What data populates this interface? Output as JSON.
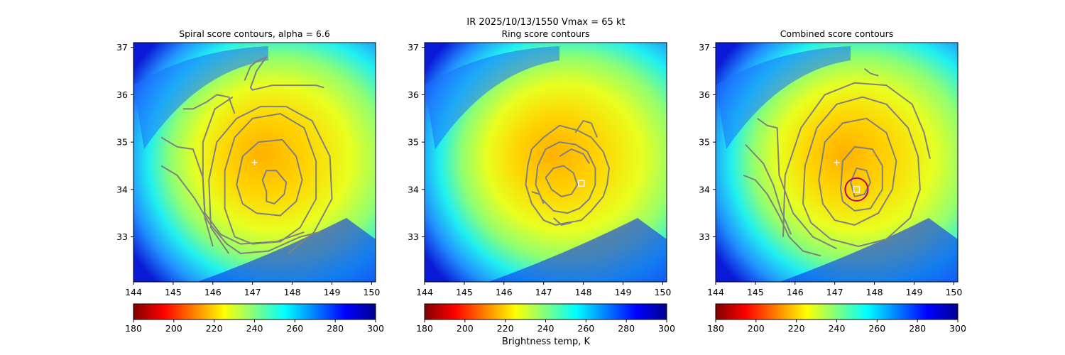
{
  "figure": {
    "suptitle_line1": "IR  2025/10/13/1550    Vmax = 65 kt",
    "colorbar_label": "Brightness temp, K"
  },
  "colormap": {
    "name": "jet",
    "stops": [
      "#800000",
      "#ff0000",
      "#ff8000",
      "#ffff00",
      "#80ff80",
      "#00ffff",
      "#0080ff",
      "#0000ff",
      "#00008f"
    ]
  },
  "colors": {
    "contour": "#808080",
    "first_guess_marker": "#ffffff",
    "best_center_ring": "#b0007a",
    "best_center_box": "#ffffff"
  },
  "chart_data": [
    {
      "type": "heatmap",
      "title": "Spiral score contours, alpha =  6.6",
      "xlim": [
        144,
        150.1
      ],
      "ylim": [
        32.05,
        37.1
      ],
      "xticks": [
        "144",
        "145",
        "146",
        "147",
        "148",
        "149",
        "150"
      ],
      "yticks": [
        "33",
        "34",
        "35",
        "36",
        "37"
      ],
      "colorbar": {
        "min": 180,
        "max": 300,
        "ticks": [
          "180",
          "200",
          "220",
          "240",
          "260",
          "280",
          "300"
        ]
      },
      "markers": [
        {
          "kind": "plus",
          "x": 147.05,
          "y": 34.57
        }
      ],
      "contours": [
        [
          [
            147.35,
            33.95
          ],
          [
            147.25,
            34.2
          ],
          [
            147.35,
            34.4
          ],
          [
            147.6,
            34.4
          ],
          [
            147.85,
            34.15
          ],
          [
            147.8,
            33.9
          ],
          [
            147.55,
            33.7
          ],
          [
            147.35,
            33.75
          ],
          [
            147.35,
            33.95
          ]
        ],
        [
          [
            147.1,
            33.5
          ],
          [
            146.75,
            33.7
          ],
          [
            146.6,
            34.1
          ],
          [
            146.75,
            34.7
          ],
          [
            147.15,
            35.0
          ],
          [
            147.75,
            35.05
          ],
          [
            148.1,
            34.7
          ],
          [
            148.25,
            34.2
          ],
          [
            148.1,
            33.75
          ],
          [
            147.7,
            33.45
          ],
          [
            147.1,
            33.5
          ]
        ],
        [
          [
            146.55,
            33.0
          ],
          [
            146.3,
            33.6
          ],
          [
            146.3,
            34.4
          ],
          [
            146.55,
            35.1
          ],
          [
            147.0,
            35.5
          ],
          [
            147.7,
            35.6
          ],
          [
            148.3,
            35.3
          ],
          [
            148.6,
            34.6
          ],
          [
            148.6,
            33.8
          ],
          [
            148.2,
            33.2
          ],
          [
            147.7,
            32.9
          ],
          [
            147.0,
            32.85
          ],
          [
            146.55,
            33.0
          ]
        ],
        [
          [
            146.4,
            32.65
          ],
          [
            145.95,
            33.2
          ],
          [
            145.9,
            34.2
          ],
          [
            146.1,
            35.0
          ],
          [
            146.6,
            35.5
          ],
          [
            147.2,
            35.75
          ],
          [
            147.85,
            35.75
          ],
          [
            148.5,
            35.45
          ],
          [
            148.95,
            34.7
          ],
          [
            149.0,
            33.8
          ],
          [
            148.55,
            33.1
          ],
          [
            147.9,
            32.65
          ]
        ],
        [
          [
            146.0,
            32.8
          ],
          [
            145.8,
            33.4
          ],
          [
            145.75,
            34.2
          ],
          [
            145.75,
            35.0
          ],
          [
            146.05,
            35.7
          ],
          [
            146.5,
            35.95
          ]
        ],
        [
          [
            144.7,
            34.5
          ],
          [
            145.1,
            34.3
          ],
          [
            145.55,
            33.8
          ],
          [
            145.9,
            33.3
          ],
          [
            146.35,
            32.85
          ],
          [
            146.7,
            32.65
          ],
          [
            147.4,
            32.7
          ],
          [
            148.2,
            33.0
          ],
          [
            148.7,
            33.1
          ]
        ],
        [
          [
            144.7,
            35.1
          ],
          [
            145.1,
            34.9
          ],
          [
            145.5,
            34.85
          ],
          [
            145.75,
            34.25
          ],
          [
            145.8,
            33.5
          ],
          [
            146.2,
            33.05
          ],
          [
            146.7,
            32.85
          ],
          [
            147.6,
            32.9
          ],
          [
            148.3,
            33.1
          ]
        ],
        [
          [
            145.25,
            35.7
          ],
          [
            145.5,
            35.7
          ],
          [
            145.85,
            35.85
          ],
          [
            146.1,
            36.0
          ],
          [
            146.4,
            35.95
          ],
          [
            146.55,
            35.6
          ]
        ],
        [
          [
            146.8,
            36.3
          ],
          [
            146.95,
            36.6
          ],
          [
            147.1,
            36.7
          ],
          [
            147.35,
            36.8
          ],
          [
            147.1,
            36.5
          ],
          [
            146.95,
            36.15
          ],
          [
            147.0,
            36.1
          ],
          [
            147.5,
            36.2
          ],
          [
            148.0,
            36.2
          ],
          [
            148.6,
            36.2
          ],
          [
            148.8,
            36.15
          ]
        ]
      ]
    },
    {
      "type": "heatmap",
      "title": "Ring score contours",
      "xlim": [
        144,
        150.1
      ],
      "ylim": [
        32.05,
        37.1
      ],
      "xticks": [
        "144",
        "145",
        "146",
        "147",
        "148",
        "149",
        "150"
      ],
      "yticks": [
        "33",
        "34",
        "35",
        "36",
        "37"
      ],
      "colorbar": {
        "min": 180,
        "max": 300,
        "ticks": [
          "180",
          "200",
          "220",
          "240",
          "260",
          "280",
          "300"
        ]
      },
      "markers": [
        {
          "kind": "square",
          "x": 147.95,
          "y": 34.13
        }
      ],
      "contours": [
        [
          [
            146.6,
            34.5
          ],
          [
            146.55,
            34.1
          ],
          [
            146.7,
            33.7
          ],
          [
            147.0,
            33.35
          ],
          [
            147.3,
            33.25
          ],
          [
            147.6,
            33.3
          ],
          [
            147.95,
            33.35
          ],
          [
            148.2,
            33.55
          ],
          [
            148.5,
            33.85
          ],
          [
            148.6,
            34.1
          ],
          [
            148.65,
            34.45
          ],
          [
            148.5,
            34.8
          ],
          [
            148.2,
            35.1
          ],
          [
            147.85,
            35.25
          ],
          [
            147.4,
            35.35
          ],
          [
            147.0,
            35.1
          ],
          [
            146.7,
            34.85
          ],
          [
            146.6,
            34.5
          ]
        ],
        [
          [
            146.85,
            34.5
          ],
          [
            146.8,
            34.1
          ],
          [
            146.95,
            33.8
          ],
          [
            147.25,
            33.55
          ],
          [
            147.6,
            33.5
          ],
          [
            147.9,
            33.6
          ],
          [
            148.15,
            33.8
          ],
          [
            148.3,
            34.1
          ],
          [
            148.3,
            34.45
          ],
          [
            148.1,
            34.8
          ],
          [
            147.8,
            34.95
          ],
          [
            147.4,
            35.0
          ],
          [
            147.05,
            34.85
          ],
          [
            146.85,
            34.5
          ]
        ],
        [
          [
            147.05,
            34.25
          ],
          [
            147.2,
            34.0
          ],
          [
            147.45,
            33.85
          ],
          [
            147.7,
            33.9
          ],
          [
            147.85,
            34.1
          ],
          [
            147.75,
            34.35
          ],
          [
            147.5,
            34.5
          ],
          [
            147.25,
            34.45
          ],
          [
            147.05,
            34.25
          ]
        ],
        [
          [
            147.4,
            34.7
          ],
          [
            147.7,
            34.85
          ],
          [
            148.0,
            34.75
          ],
          [
            148.15,
            34.55
          ]
        ],
        [
          [
            146.7,
            33.95
          ],
          [
            146.9,
            33.9
          ],
          [
            147.0,
            33.7
          ]
        ],
        [
          [
            147.8,
            35.2
          ],
          [
            148.0,
            35.45
          ],
          [
            148.2,
            35.4
          ],
          [
            148.35,
            35.1
          ]
        ],
        [
          [
            147.25,
            33.4
          ],
          [
            147.45,
            33.25
          ],
          [
            147.7,
            33.3
          ]
        ]
      ]
    },
    {
      "type": "heatmap",
      "title": "Combined score contours",
      "xlim": [
        144,
        150.1
      ],
      "ylim": [
        32.05,
        37.1
      ],
      "xticks": [
        "144",
        "145",
        "146",
        "147",
        "148",
        "149",
        "150"
      ],
      "yticks": [
        "33",
        "34",
        "35",
        "36",
        "37"
      ],
      "colorbar": {
        "min": 180,
        "max": 300,
        "ticks": [
          "180",
          "200",
          "220",
          "240",
          "260",
          "280",
          "300"
        ]
      },
      "markers": [
        {
          "kind": "plus",
          "x": 147.05,
          "y": 34.57
        },
        {
          "kind": "square",
          "x": 147.55,
          "y": 34.0
        },
        {
          "kind": "ring",
          "x": 147.55,
          "y": 34.0
        }
      ],
      "contours": [
        [
          [
            147.4,
            34.15
          ],
          [
            147.55,
            34.45
          ],
          [
            147.8,
            34.4
          ],
          [
            147.9,
            34.15
          ],
          [
            147.75,
            33.9
          ],
          [
            147.5,
            33.85
          ],
          [
            147.4,
            34.15
          ]
        ],
        [
          [
            147.15,
            34.0
          ],
          [
            147.2,
            34.6
          ],
          [
            147.5,
            34.9
          ],
          [
            147.95,
            34.85
          ],
          [
            148.2,
            34.5
          ],
          [
            148.2,
            34.0
          ],
          [
            147.9,
            33.6
          ],
          [
            147.5,
            33.55
          ],
          [
            147.2,
            33.75
          ],
          [
            147.15,
            34.0
          ]
        ],
        [
          [
            146.6,
            34.2
          ],
          [
            146.75,
            35.0
          ],
          [
            147.2,
            35.4
          ],
          [
            147.8,
            35.5
          ],
          [
            148.3,
            35.2
          ],
          [
            148.55,
            34.6
          ],
          [
            148.45,
            34.0
          ],
          [
            148.1,
            33.5
          ],
          [
            147.5,
            33.25
          ],
          [
            147.0,
            33.35
          ],
          [
            146.7,
            33.7
          ],
          [
            146.6,
            34.2
          ]
        ],
        [
          [
            146.2,
            33.7
          ],
          [
            146.25,
            34.5
          ],
          [
            146.55,
            35.3
          ],
          [
            147.05,
            35.8
          ],
          [
            147.7,
            35.95
          ],
          [
            148.3,
            35.8
          ],
          [
            148.85,
            35.3
          ],
          [
            149.1,
            34.7
          ],
          [
            149.15,
            34.0
          ],
          [
            148.9,
            33.4
          ],
          [
            148.3,
            32.95
          ],
          [
            147.6,
            32.8
          ],
          [
            146.9,
            32.95
          ],
          [
            146.4,
            33.3
          ],
          [
            146.2,
            33.7
          ]
        ],
        [
          [
            145.7,
            33.0
          ],
          [
            145.75,
            34.3
          ],
          [
            146.15,
            35.3
          ],
          [
            146.75,
            36.0
          ],
          [
            147.5,
            36.25
          ],
          [
            148.3,
            36.2
          ],
          [
            148.95,
            35.8
          ],
          [
            149.25,
            35.2
          ],
          [
            149.4,
            34.65
          ]
        ],
        [
          [
            145.05,
            35.5
          ],
          [
            145.3,
            35.35
          ],
          [
            145.55,
            35.3
          ],
          [
            145.6,
            34.3
          ],
          [
            145.95,
            33.5
          ],
          [
            146.45,
            33.0
          ],
          [
            147.05,
            32.75
          ]
        ],
        [
          [
            144.75,
            34.95
          ],
          [
            145.2,
            34.55
          ],
          [
            145.45,
            34.1
          ],
          [
            145.65,
            33.55
          ],
          [
            145.9,
            33.05
          ]
        ],
        [
          [
            144.7,
            34.3
          ],
          [
            145.0,
            34.2
          ],
          [
            145.3,
            33.9
          ],
          [
            145.6,
            33.45
          ],
          [
            145.85,
            33.0
          ],
          [
            146.2,
            32.7
          ],
          [
            146.65,
            32.6
          ]
        ],
        [
          [
            147.75,
            36.55
          ],
          [
            147.9,
            36.45
          ],
          [
            148.1,
            36.4
          ]
        ]
      ]
    }
  ]
}
